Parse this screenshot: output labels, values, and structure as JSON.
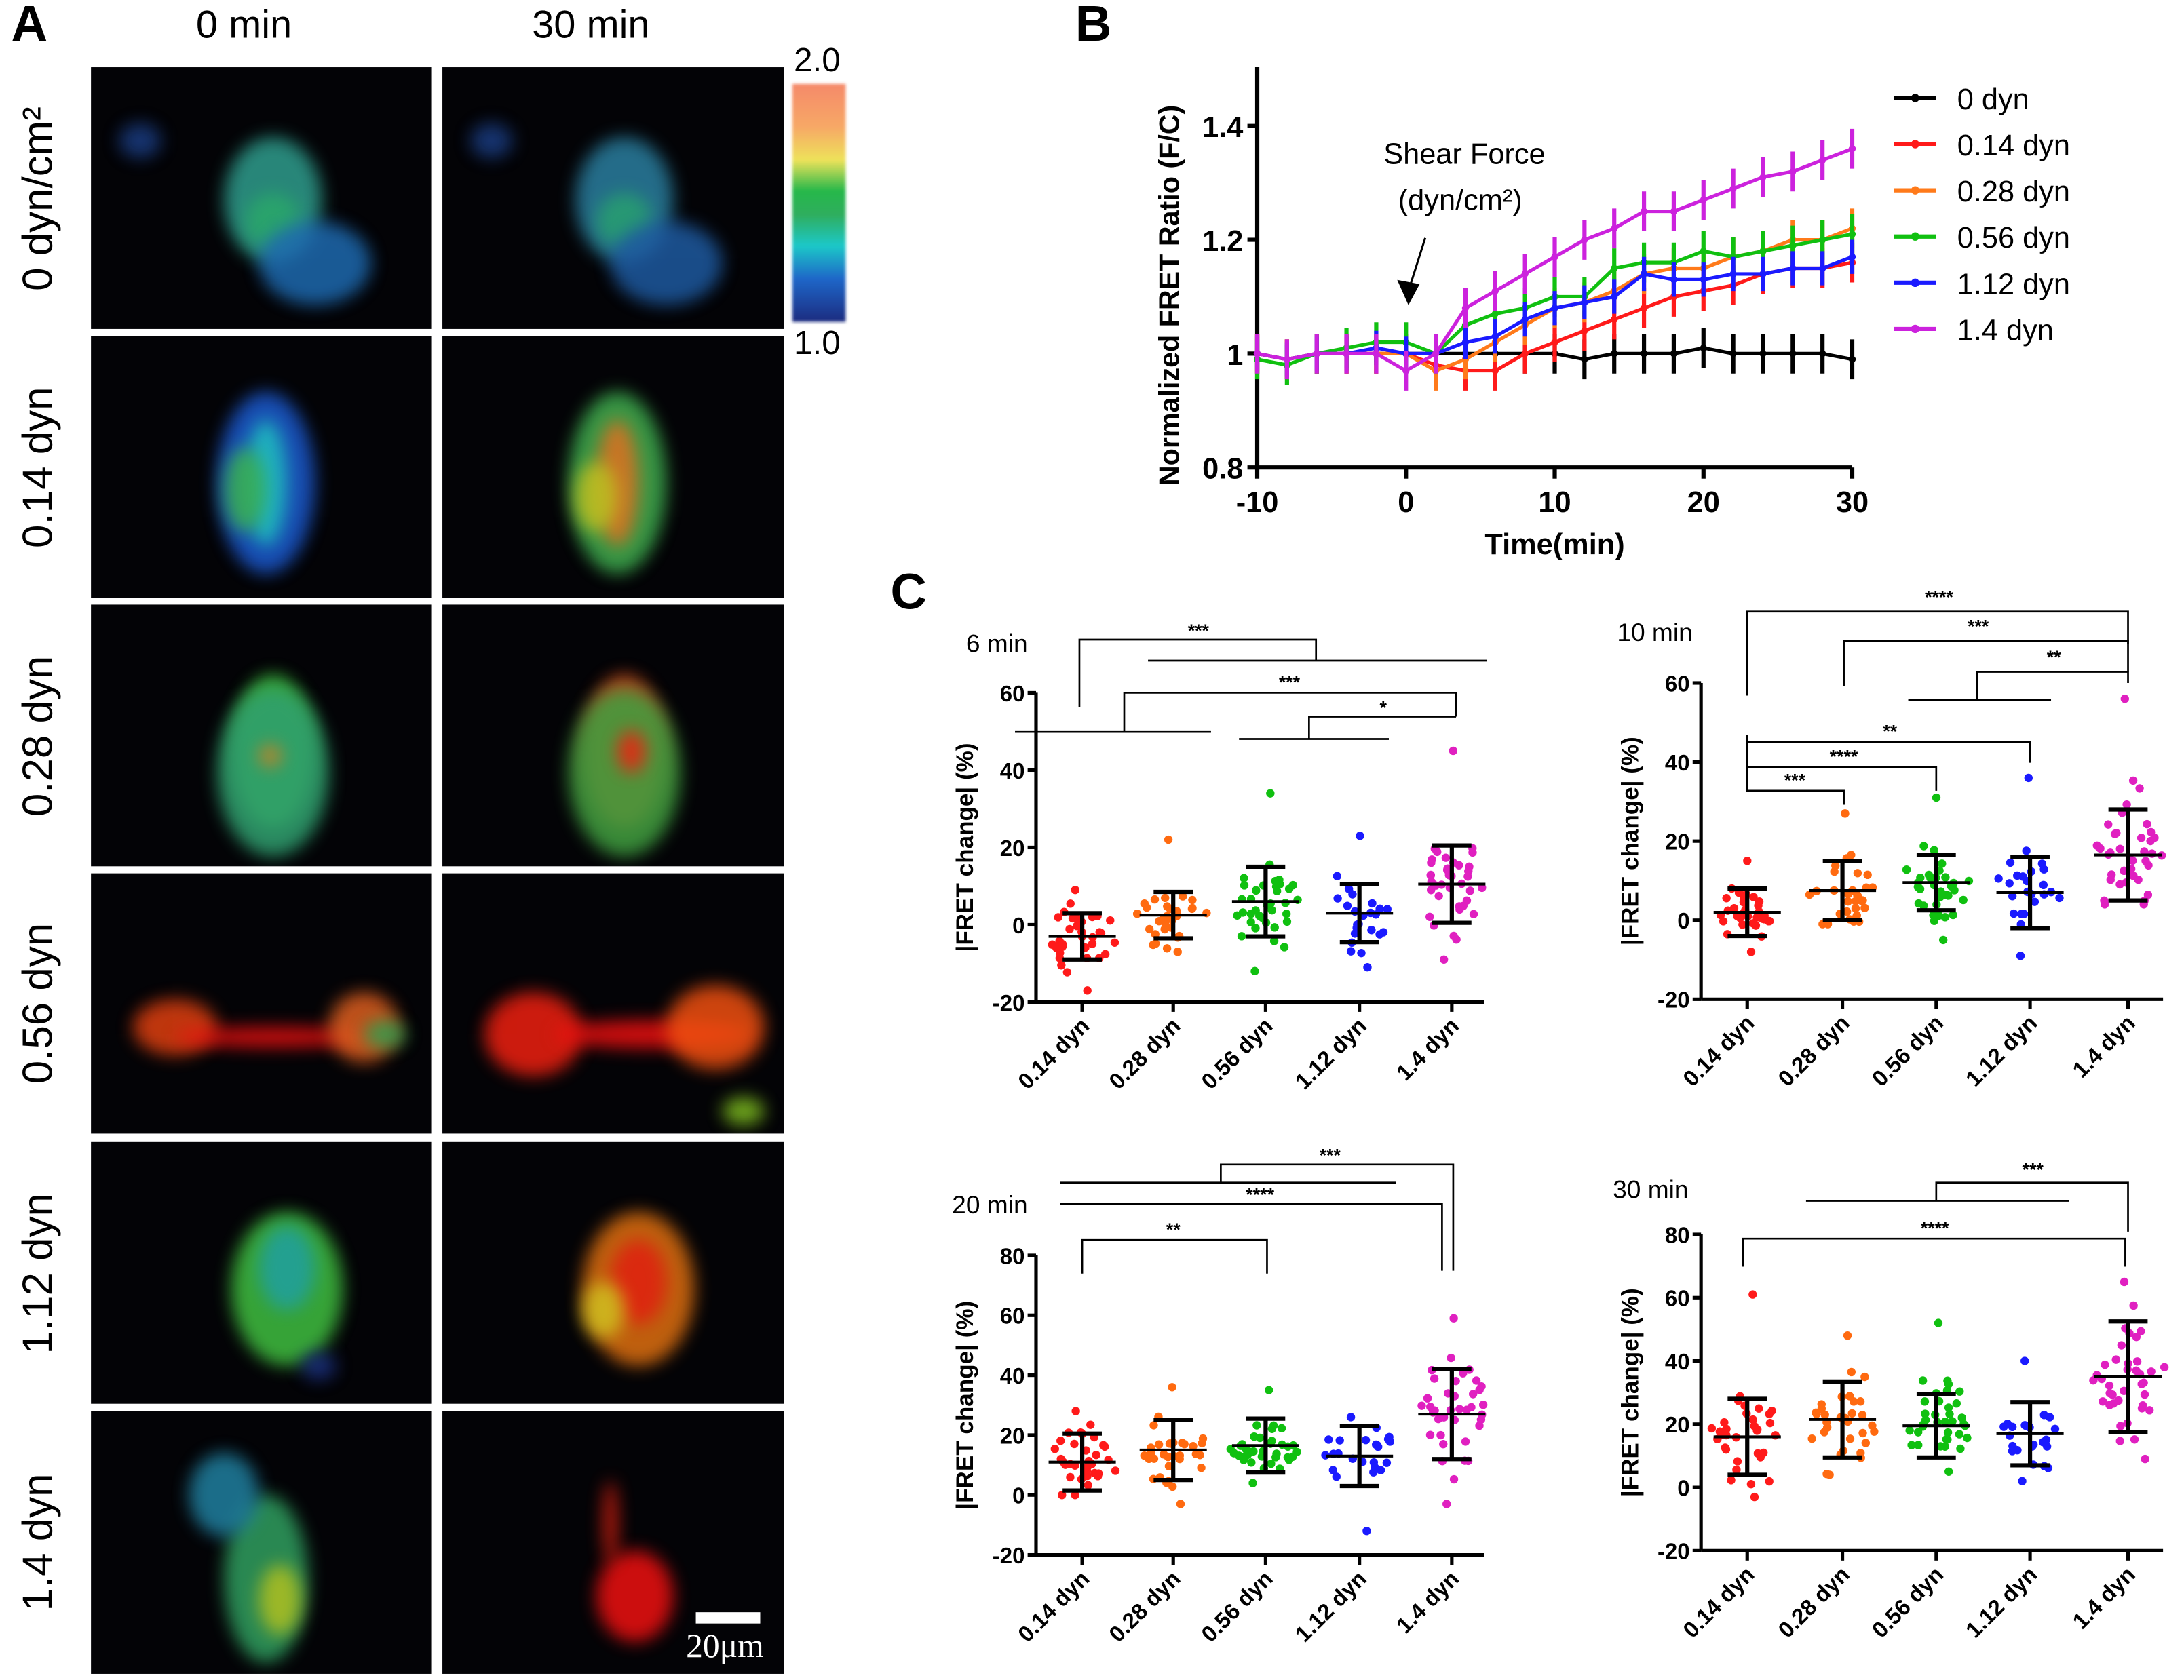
{
  "panel_labels": {
    "a": "A",
    "b": "B",
    "c": "C"
  },
  "panel_a": {
    "columns": [
      "0 min",
      "30 min"
    ],
    "rows": [
      "0 dyn/cm²",
      "0.14 dyn",
      "0.28 dyn",
      "0.56 dyn",
      "1.12 dyn",
      "1.4 dyn"
    ],
    "colorbar": {
      "max": "2.0",
      "min": "1.0"
    },
    "scale_bar": "20μm"
  },
  "chart_data": [
    {
      "type": "line",
      "id": "B",
      "title": "",
      "xlabel": "Time(min)",
      "ylabel": "Normalized FRET Ratio (F/C)",
      "xlim": [
        -10,
        30
      ],
      "ylim": [
        0.8,
        1.5
      ],
      "xticks": [
        -10,
        0,
        10,
        20,
        30
      ],
      "yticks": [
        0.8,
        1.0,
        1.2,
        1.4
      ],
      "annotation": [
        "Shear Force",
        "(dyn/cm²)"
      ],
      "annotation_x": 0,
      "legend": "right",
      "x": [
        -10,
        -8,
        -6,
        -4,
        -2,
        0,
        2,
        4,
        6,
        8,
        10,
        12,
        14,
        16,
        18,
        20,
        22,
        24,
        26,
        28,
        30
      ],
      "series": [
        {
          "name": "0 dyn",
          "color": "#000000",
          "err": 0.035,
          "values": [
            1,
            0.99,
            1,
            1,
            1,
            1,
            1,
            1,
            1,
            1,
            1,
            0.99,
            1,
            1,
            1,
            1.01,
            1,
            1,
            1,
            1,
            0.99
          ]
        },
        {
          "name": "0.14 dyn",
          "color": "#ff1a1a",
          "err": 0.035,
          "values": [
            1,
            0.99,
            1,
            1,
            1,
            1,
            0.98,
            0.97,
            0.97,
            1,
            1.02,
            1.04,
            1.06,
            1.08,
            1.1,
            1.11,
            1.12,
            1.14,
            1.15,
            1.15,
            1.16
          ]
        },
        {
          "name": "0.28 dyn",
          "color": "#ff7a1a",
          "err": 0.035,
          "values": [
            1,
            0.99,
            1,
            1,
            1,
            1,
            0.97,
            0.99,
            1.02,
            1.05,
            1.08,
            1.09,
            1.11,
            1.14,
            1.15,
            1.15,
            1.17,
            1.18,
            1.2,
            1.2,
            1.22
          ]
        },
        {
          "name": "0.56 dyn",
          "color": "#10c010",
          "err": 0.035,
          "values": [
            0.99,
            0.98,
            1,
            1.01,
            1.02,
            1.02,
            1,
            1.05,
            1.07,
            1.08,
            1.1,
            1.1,
            1.15,
            1.16,
            1.16,
            1.18,
            1.17,
            1.18,
            1.19,
            1.2,
            1.21
          ]
        },
        {
          "name": "1.12 dyn",
          "color": "#1a1aff",
          "err": 0.03,
          "values": [
            1,
            0.99,
            1,
            1,
            1.01,
            1,
            1,
            1.02,
            1.03,
            1.06,
            1.08,
            1.09,
            1.1,
            1.14,
            1.13,
            1.13,
            1.14,
            1.14,
            1.15,
            1.15,
            1.17
          ]
        },
        {
          "name": "1.4 dyn",
          "color": "#cc22dd",
          "err": 0.035,
          "values": [
            1,
            0.99,
            1,
            1,
            1,
            0.97,
            1,
            1.08,
            1.11,
            1.14,
            1.17,
            1.2,
            1.22,
            1.25,
            1.25,
            1.27,
            1.29,
            1.31,
            1.32,
            1.34,
            1.36
          ]
        }
      ]
    },
    {
      "type": "scatter",
      "id": "C6",
      "title": "6 min",
      "ylabel": "|FRET change| (%)",
      "ylim": [
        -20,
        60
      ],
      "yticks": [
        -20,
        0,
        20,
        40,
        60
      ],
      "categories": [
        "0.14 dyn",
        "0.28 dyn",
        "0.56 dyn",
        "1.12 dyn",
        "1.4 dyn"
      ],
      "colors": [
        "#ff1a1a",
        "#ff6a10",
        "#10c010",
        "#1a1aff",
        "#e020c0"
      ],
      "groups": [
        {
          "mean": -3,
          "sd": 6,
          "n": 34,
          "min": -17,
          "max": 9
        },
        {
          "mean": 2.5,
          "sd": 6,
          "n": 32,
          "min": -7,
          "max": 22
        },
        {
          "mean": 6,
          "sd": 9,
          "n": 36,
          "min": -12,
          "max": 34
        },
        {
          "mean": 3,
          "sd": 7.5,
          "n": 24,
          "min": -11,
          "max": 23
        },
        {
          "mean": 10.5,
          "sd": 10,
          "n": 38,
          "min": -9,
          "max": 45
        }
      ],
      "significance": [
        "***",
        "***",
        "*"
      ]
    },
    {
      "type": "scatter",
      "id": "C10",
      "title": "10 min",
      "ylabel": "|FRET change| (%)",
      "ylim": [
        -20,
        60
      ],
      "yticks": [
        -20,
        0,
        20,
        40,
        60
      ],
      "categories": [
        "0.14 dyn",
        "0.28 dyn",
        "0.56 dyn",
        "1.12 dyn",
        "1.4 dyn"
      ],
      "colors": [
        "#ff1a1a",
        "#ff6a10",
        "#10c010",
        "#1a1aff",
        "#e020c0"
      ],
      "groups": [
        {
          "mean": 2,
          "sd": 6,
          "n": 34,
          "min": -8,
          "max": 15
        },
        {
          "mean": 7.5,
          "sd": 7.5,
          "n": 32,
          "min": -1,
          "max": 27
        },
        {
          "mean": 9.5,
          "sd": 7,
          "n": 36,
          "min": -5,
          "max": 31
        },
        {
          "mean": 7,
          "sd": 9,
          "n": 24,
          "min": -9,
          "max": 36
        },
        {
          "mean": 16.5,
          "sd": 11.5,
          "n": 38,
          "min": 4,
          "max": 56
        }
      ],
      "significance": [
        "****",
        "***",
        "**",
        "***",
        "****",
        "**"
      ]
    },
    {
      "type": "scatter",
      "id": "C20",
      "title": "20 min",
      "ylabel": "|FRET change| (%)",
      "ylim": [
        -20,
        80
      ],
      "yticks": [
        -20,
        0,
        20,
        40,
        60,
        80
      ],
      "categories": [
        "0.14 dyn",
        "0.28 dyn",
        "0.56 dyn",
        "1.12 dyn",
        "1.4 dyn"
      ],
      "colors": [
        "#ff1a1a",
        "#ff6a10",
        "#10c010",
        "#1a1aff",
        "#e020c0"
      ],
      "groups": [
        {
          "mean": 11,
          "sd": 9.5,
          "n": 34,
          "min": 0,
          "max": 28
        },
        {
          "mean": 15,
          "sd": 10,
          "n": 32,
          "min": -3,
          "max": 36
        },
        {
          "mean": 16.5,
          "sd": 9,
          "n": 36,
          "min": 4,
          "max": 35
        },
        {
          "mean": 13,
          "sd": 10,
          "n": 24,
          "min": -12,
          "max": 26
        },
        {
          "mean": 27,
          "sd": 15,
          "n": 38,
          "min": -3,
          "max": 59
        }
      ],
      "significance": [
        "***",
        "****",
        "**"
      ]
    },
    {
      "type": "scatter",
      "id": "C30",
      "title": "30 min",
      "ylabel": "|FRET change| (%)",
      "ylim": [
        -20,
        80
      ],
      "yticks": [
        -20,
        0,
        20,
        40,
        60,
        80
      ],
      "categories": [
        "0.14 dyn",
        "0.28 dyn",
        "0.56 dyn",
        "1.12 dyn",
        "1.4 dyn"
      ],
      "colors": [
        "#ff1a1a",
        "#ff6a10",
        "#10c010",
        "#1a1aff",
        "#e020c0"
      ],
      "groups": [
        {
          "mean": 16,
          "sd": 12,
          "n": 34,
          "min": -3,
          "max": 61
        },
        {
          "mean": 21.5,
          "sd": 12,
          "n": 32,
          "min": 4,
          "max": 48
        },
        {
          "mean": 19.5,
          "sd": 10,
          "n": 36,
          "min": 5,
          "max": 52
        },
        {
          "mean": 17,
          "sd": 10,
          "n": 24,
          "min": 2,
          "max": 40
        },
        {
          "mean": 35,
          "sd": 17.5,
          "n": 38,
          "min": 9,
          "max": 65
        }
      ],
      "significance": [
        "***",
        "****"
      ]
    }
  ]
}
